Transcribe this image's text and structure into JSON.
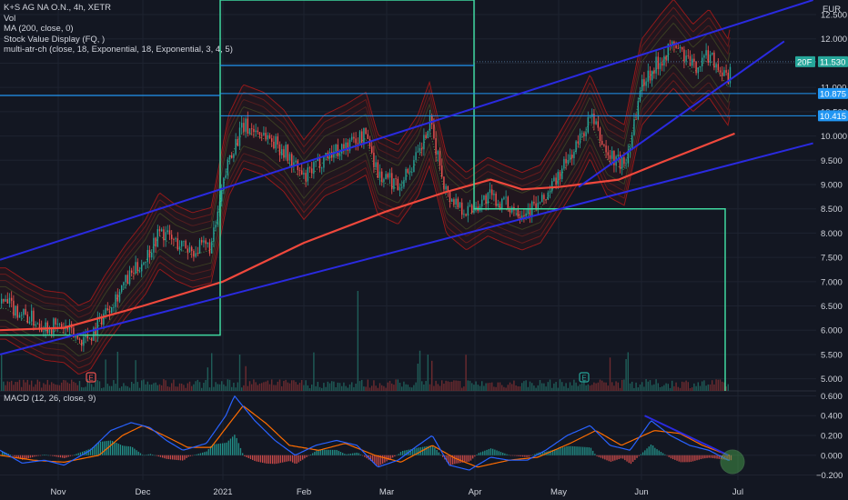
{
  "legend": {
    "symbol": "K+S AG NA O.N., 4h, XETR",
    "vol": "Vol",
    "ma": "MA (200, close, 0)",
    "svd": "Stock Value Display (FQ, )",
    "atr": "multi-atr-ch (close, 18, Exponential, 18, Exponential, 3, 4, 5)"
  },
  "macd_legend": "MACD (12, 26, close, 9)",
  "currency": "EUR",
  "price_labels": {
    "last_tag": "20F",
    "last_value": "11.530",
    "line1": "10.875",
    "line2": "10.415"
  },
  "colors": {
    "background": "#131722",
    "up": "#26a69a",
    "down": "#ef5350",
    "ma": "#f0483c",
    "trend": "#2a2ae0",
    "box": "#3fd8a0",
    "hline": "#2196f3",
    "macd": "#2962ff",
    "signal": "#ff6d00"
  },
  "chart_data": [
    {
      "type": "candlestick",
      "title": "K+S AG NA O.N., 4h, XETR",
      "ylabel": "EUR",
      "ylim": [
        4.75,
        12.8
      ],
      "y_ticks": [
        "5.000",
        "5.500",
        "6.000",
        "6.500",
        "7.000",
        "7.500",
        "8.000",
        "8.500",
        "9.000",
        "9.500",
        "10.000",
        "10.500",
        "11.000",
        "11.500",
        "12.000",
        "12.500"
      ],
      "x_ticks": [
        "Nov",
        "Dec",
        "2021",
        "Feb",
        "Mar",
        "Apr",
        "May",
        "Jun",
        "Jul"
      ],
      "close_series": [
        [
          "2020-10-14",
          6.55
        ],
        [
          "2020-10-21",
          6.3
        ],
        [
          "2020-10-28",
          6.1
        ],
        [
          "2020-11-04",
          6.05
        ],
        [
          "2020-11-09",
          5.8
        ],
        [
          "2020-11-13",
          5.9
        ],
        [
          "2020-11-18",
          6.4
        ],
        [
          "2020-11-25",
          7.0
        ],
        [
          "2020-12-02",
          7.5
        ],
        [
          "2020-12-08",
          8.05
        ],
        [
          "2020-12-15",
          7.8
        ],
        [
          "2020-12-22",
          7.65
        ],
        [
          "2020-12-30",
          7.75
        ],
        [
          "2021-01-06",
          9.6
        ],
        [
          "2021-01-11",
          10.2
        ],
        [
          "2021-01-18",
          10.05
        ],
        [
          "2021-01-25",
          9.7
        ],
        [
          "2021-02-01",
          9.1
        ],
        [
          "2021-02-08",
          9.6
        ],
        [
          "2021-02-15",
          9.8
        ],
        [
          "2021-02-22",
          10.05
        ],
        [
          "2021-02-26",
          9.2
        ],
        [
          "2021-03-05",
          9.0
        ],
        [
          "2021-03-12",
          9.6
        ],
        [
          "2021-03-16",
          10.25
        ],
        [
          "2021-03-22",
          8.8
        ],
        [
          "2021-03-29",
          8.45
        ],
        [
          "2021-04-06",
          8.75
        ],
        [
          "2021-04-12",
          8.6
        ],
        [
          "2021-04-19",
          8.45
        ],
        [
          "2021-04-26",
          8.6
        ],
        [
          "2021-05-03",
          9.2
        ],
        [
          "2021-05-10",
          9.9
        ],
        [
          "2021-05-14",
          10.4
        ],
        [
          "2021-05-20",
          9.6
        ],
        [
          "2021-05-26",
          9.4
        ],
        [
          "2021-06-01",
          11.1
        ],
        [
          "2021-06-07",
          11.6
        ],
        [
          "2021-06-11",
          11.9
        ],
        [
          "2021-06-17",
          11.4
        ],
        [
          "2021-06-22",
          11.7
        ],
        [
          "2021-06-28",
          11.1
        ],
        [
          "2021-06-29",
          11.53
        ]
      ],
      "ma200": [
        [
          "2020-10-12",
          6.0
        ],
        [
          "2020-11-04",
          6.05
        ],
        [
          "2020-12-01",
          6.5
        ],
        [
          "2021-01-04",
          7.0
        ],
        [
          "2021-02-01",
          7.8
        ],
        [
          "2021-03-01",
          8.45
        ],
        [
          "2021-03-22",
          8.85
        ],
        [
          "2021-04-07",
          9.1
        ],
        [
          "2021-04-19",
          8.9
        ],
        [
          "2021-05-03",
          8.95
        ],
        [
          "2021-05-24",
          9.1
        ],
        [
          "2021-06-07",
          9.45
        ],
        [
          "2021-06-30",
          10.05
        ]
      ],
      "trendlines": [
        {
          "from": [
            "2020-10-12",
            7.45
          ],
          "to": [
            "2021-07-14",
            12.8
          ]
        },
        {
          "from": [
            "2021-05-10",
            8.95
          ],
          "to": [
            "2021-07-09",
            11.95
          ]
        },
        {
          "from": [
            "2020-10-12",
            5.5
          ],
          "to": [
            "2021-07-14",
            9.85
          ]
        }
      ],
      "horizontal_levels": [
        10.875,
        10.415
      ],
      "last_price": 11.53
    },
    {
      "type": "line",
      "title": "MACD (12, 26, close, 9)",
      "ylim": [
        -0.25,
        0.65
      ],
      "y_ticks": [
        "0.600",
        "0.400",
        "0.200",
        "0.000",
        "−0.200"
      ],
      "series": [
        {
          "name": "MACD",
          "values": [
            [
              "2020-10-12",
              0.05
            ],
            [
              "2020-10-20",
              -0.08
            ],
            [
              "2020-10-28",
              -0.05
            ],
            [
              "2020-11-04",
              -0.1
            ],
            [
              "2020-11-13",
              0.05
            ],
            [
              "2020-11-20",
              0.25
            ],
            [
              "2020-11-27",
              0.33
            ],
            [
              "2020-12-04",
              0.28
            ],
            [
              "2020-12-11",
              0.15
            ],
            [
              "2020-12-18",
              0.05
            ],
            [
              "2020-12-28",
              0.12
            ],
            [
              "2021-01-05",
              0.4
            ],
            [
              "2021-01-08",
              0.6
            ],
            [
              "2021-01-15",
              0.35
            ],
            [
              "2021-01-22",
              0.15
            ],
            [
              "2021-01-29",
              0.0
            ],
            [
              "2021-02-05",
              0.1
            ],
            [
              "2021-02-12",
              0.15
            ],
            [
              "2021-02-19",
              0.1
            ],
            [
              "2021-02-26",
              -0.12
            ],
            [
              "2021-03-05",
              -0.05
            ],
            [
              "2021-03-12",
              0.1
            ],
            [
              "2021-03-17",
              0.2
            ],
            [
              "2021-03-23",
              -0.1
            ],
            [
              "2021-03-30",
              -0.15
            ],
            [
              "2021-04-07",
              -0.02
            ],
            [
              "2021-04-14",
              -0.05
            ],
            [
              "2021-04-21",
              -0.05
            ],
            [
              "2021-04-28",
              0.05
            ],
            [
              "2021-05-06",
              0.2
            ],
            [
              "2021-05-14",
              0.3
            ],
            [
              "2021-05-21",
              0.1
            ],
            [
              "2021-05-28",
              0.05
            ],
            [
              "2021-06-04",
              0.35
            ],
            [
              "2021-06-10",
              0.2
            ],
            [
              "2021-06-16",
              0.1
            ],
            [
              "2021-06-22",
              0.05
            ],
            [
              "2021-06-28",
              -0.05
            ]
          ]
        },
        {
          "name": "Signal",
          "values": [
            [
              "2020-10-12",
              0.0
            ],
            [
              "2020-10-24",
              -0.05
            ],
            [
              "2020-11-04",
              -0.07
            ],
            [
              "2020-11-16",
              0.0
            ],
            [
              "2020-11-24",
              0.2
            ],
            [
              "2020-12-01",
              0.3
            ],
            [
              "2020-12-10",
              0.2
            ],
            [
              "2020-12-20",
              0.08
            ],
            [
              "2020-12-30",
              0.08
            ],
            [
              "2021-01-07",
              0.35
            ],
            [
              "2021-01-11",
              0.5
            ],
            [
              "2021-01-19",
              0.32
            ],
            [
              "2021-01-27",
              0.1
            ],
            [
              "2021-02-06",
              0.05
            ],
            [
              "2021-02-15",
              0.12
            ],
            [
              "2021-02-25",
              0.0
            ],
            [
              "2021-03-06",
              -0.07
            ],
            [
              "2021-03-17",
              0.1
            ],
            [
              "2021-03-25",
              -0.03
            ],
            [
              "2021-04-02",
              -0.12
            ],
            [
              "2021-04-14",
              -0.05
            ],
            [
              "2021-04-25",
              -0.02
            ],
            [
              "2021-05-07",
              0.12
            ],
            [
              "2021-05-16",
              0.25
            ],
            [
              "2021-05-25",
              0.1
            ],
            [
              "2021-06-05",
              0.25
            ],
            [
              "2021-06-13",
              0.22
            ],
            [
              "2021-06-20",
              0.1
            ],
            [
              "2021-06-28",
              0.0
            ]
          ]
        }
      ],
      "trendline": {
        "from": [
          "2021-06-02",
          0.4
        ],
        "to": [
          "2021-06-28",
          0.0
        ]
      }
    }
  ]
}
